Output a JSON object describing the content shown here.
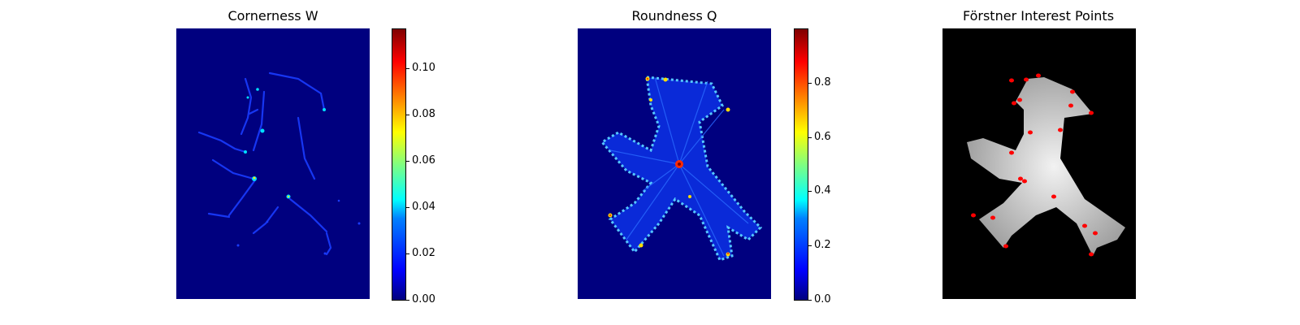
{
  "chart_data": [
    {
      "type": "heatmap",
      "title": "Cornerness W",
      "colormap": "jet",
      "background_value": 0.0,
      "colorbar": {
        "min": 0.0,
        "max": 0.117,
        "ticks": [
          "0.00",
          "0.02",
          "0.04",
          "0.06",
          "0.08",
          "0.10"
        ],
        "tick_values": [
          0.0,
          0.02,
          0.04,
          0.06,
          0.08,
          0.1
        ]
      },
      "axes": "off"
    },
    {
      "type": "heatmap",
      "title": "Roundness Q",
      "colormap": "jet",
      "background_value": 0.0,
      "colorbar": {
        "min": 0.0,
        "max": 1.0,
        "ticks": [
          "0.0",
          "0.2",
          "0.4",
          "0.6",
          "0.8"
        ],
        "tick_values": [
          0.0,
          0.2,
          0.4,
          0.6,
          0.8
        ]
      },
      "axes": "off"
    },
    {
      "type": "scatter",
      "title": "Förstner Interest Points",
      "background": "grayscale image of walking traffic-light figure",
      "point_color": "#ff0000",
      "axes": "off"
    }
  ],
  "colors": {
    "jet_low": "#00007f",
    "figure_gray": "#c8c8c8",
    "points": "#ff0000"
  }
}
